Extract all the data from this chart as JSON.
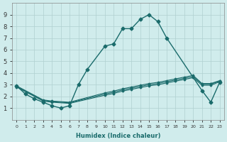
{
  "xlabel": "Humidex (Indice chaleur)",
  "background_color": "#d0ecec",
  "grid_color": "#b0d0d0",
  "line_color": "#1a6b6b",
  "xlim": [
    -0.5,
    23.5
  ],
  "ylim": [
    0,
    10
  ],
  "xticks": [
    0,
    1,
    2,
    3,
    4,
    5,
    6,
    7,
    8,
    9,
    10,
    11,
    12,
    13,
    14,
    15,
    16,
    17,
    18,
    19,
    20,
    21,
    22,
    23
  ],
  "yticks": [
    1,
    2,
    3,
    4,
    5,
    6,
    7,
    8,
    9
  ],
  "main_line": {
    "x": [
      0,
      1,
      2,
      3,
      4,
      5,
      6,
      7,
      8,
      10,
      11,
      12,
      13,
      14,
      15,
      16,
      17,
      21,
      22,
      23
    ],
    "y": [
      2.9,
      2.2,
      1.8,
      1.5,
      1.2,
      1.0,
      1.2,
      3.0,
      4.3,
      6.3,
      6.5,
      7.8,
      7.8,
      8.6,
      9.0,
      8.4,
      7.0,
      2.5,
      1.5,
      3.2
    ]
  },
  "flat_lines": [
    {
      "x": [
        0,
        3,
        4,
        6,
        10,
        11,
        12,
        13,
        14,
        15,
        16,
        17,
        18,
        19,
        20,
        21,
        22,
        23
      ],
      "y": [
        2.8,
        1.6,
        1.5,
        1.4,
        2.1,
        2.25,
        2.45,
        2.6,
        2.75,
        2.9,
        3.0,
        3.15,
        3.3,
        3.45,
        3.6,
        2.95,
        2.95,
        3.25
      ]
    },
    {
      "x": [
        0,
        3,
        4,
        6,
        10,
        11,
        12,
        13,
        14,
        15,
        16,
        17,
        18,
        19,
        20,
        21,
        22,
        23
      ],
      "y": [
        2.85,
        1.65,
        1.55,
        1.45,
        2.2,
        2.35,
        2.55,
        2.7,
        2.85,
        3.0,
        3.1,
        3.25,
        3.4,
        3.55,
        3.7,
        3.05,
        3.05,
        3.3
      ]
    },
    {
      "x": [
        0,
        3,
        4,
        6,
        10,
        11,
        12,
        13,
        14,
        15,
        16,
        17,
        18,
        19,
        20,
        21,
        22,
        23
      ],
      "y": [
        2.9,
        1.7,
        1.6,
        1.5,
        2.3,
        2.45,
        2.65,
        2.8,
        2.95,
        3.1,
        3.2,
        3.35,
        3.5,
        3.65,
        3.8,
        3.1,
        3.1,
        3.35
      ]
    }
  ]
}
